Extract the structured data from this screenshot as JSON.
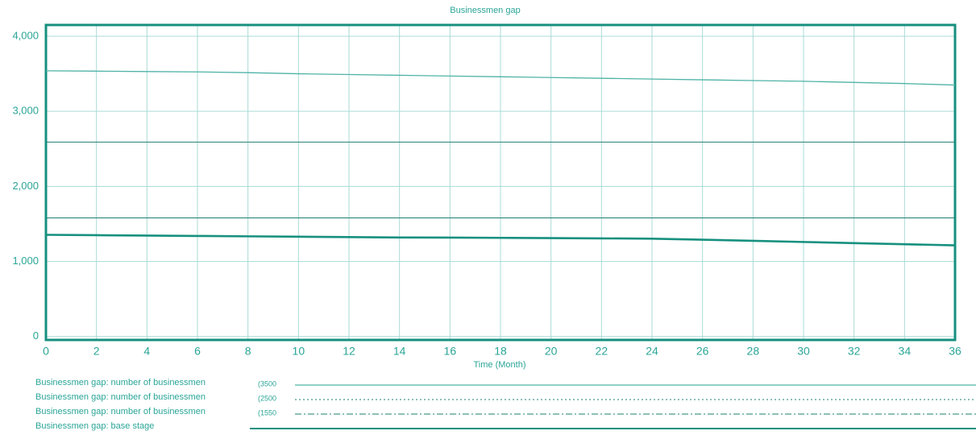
{
  "chart_data": {
    "type": "line",
    "title": "Businessmen gap",
    "x_label": "Time (Month)",
    "x": [
      0,
      2,
      4,
      6,
      8,
      10,
      12,
      14,
      16,
      18,
      20,
      22,
      24,
      26,
      28,
      30,
      32,
      34,
      36
    ],
    "xlim": [
      0,
      36
    ],
    "xticks": [
      0,
      2,
      4,
      6,
      8,
      10,
      12,
      14,
      16,
      18,
      20,
      22,
      24,
      26,
      28,
      30,
      32,
      34,
      36
    ],
    "ylim": [
      -45,
      4150
    ],
    "yticks": [
      0,
      {
        "value": 1000,
        "label": "1,000"
      },
      {
        "value": 2000,
        "label": "2,000"
      },
      {
        "value": 3000,
        "label": "3,000"
      },
      {
        "value": 4000,
        "label": "4,000"
      }
    ],
    "grid": true,
    "series": [
      {
        "name": "Businessmen gap: number of businessmen",
        "note": "(3500",
        "color": "#4fb3a6",
        "width": 1.3,
        "dash": "none",
        "values": [
          3540,
          3535,
          3530,
          3525,
          3515,
          3500,
          3490,
          3480,
          3470,
          3460,
          3450,
          3440,
          3430,
          3420,
          3410,
          3400,
          3385,
          3370,
          3350
        ]
      },
      {
        "name": "Businessmen gap: number of businessmen",
        "note": "(2500",
        "color": "#1d7f72",
        "width": 1,
        "dash": "2 3",
        "values": [
          2590,
          2590,
          2590,
          2590,
          2590,
          2590,
          2590,
          2590,
          2590,
          2590,
          2590,
          2590,
          2590,
          2590,
          2590,
          2590,
          2590,
          2590,
          2590
        ]
      },
      {
        "name": "Businessmen gap: number of businessmen",
        "note": "(1550",
        "color": "#1d7f72",
        "width": 1,
        "dash": "8 3 2 3",
        "values": [
          1580,
          1580,
          1580,
          1580,
          1580,
          1580,
          1580,
          1580,
          1580,
          1580,
          1580,
          1580,
          1580,
          1580,
          1580,
          1580,
          1580,
          1580,
          1580
        ]
      },
      {
        "name": "Businessmen gap: base stage",
        "color": "#17907f",
        "width": 2.6,
        "dash": "none",
        "values": [
          1355,
          1350,
          1345,
          1340,
          1335,
          1330,
          1325,
          1320,
          1318,
          1315,
          1312,
          1308,
          1304,
          1290,
          1275,
          1260,
          1245,
          1230,
          1215
        ]
      }
    ]
  }
}
